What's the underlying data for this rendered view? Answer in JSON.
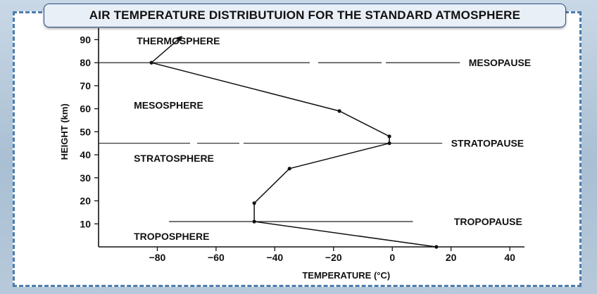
{
  "title": "AIR TEMPERATURE DISTRIBUTUION FOR THE STANDARD ATMOSPHERE",
  "chart_data": {
    "type": "line",
    "xlabel": "TEMPERATURE (°C)",
    "ylabel": "HEIGHT (km)",
    "xlim": [
      -100,
      45
    ],
    "ylim": [
      0,
      95
    ],
    "xticks": [
      -80,
      -60,
      -40,
      -20,
      0,
      20,
      40
    ],
    "yticks": [
      10,
      20,
      30,
      40,
      50,
      60,
      70,
      80,
      90
    ],
    "xtick_labels": [
      "−80",
      "−60",
      "−40",
      "−20",
      "0",
      "20",
      "40"
    ],
    "ytick_labels": [
      "10",
      "20",
      "30",
      "40",
      "50",
      "60",
      "70",
      "80",
      "90"
    ],
    "series": [
      {
        "points": [
          {
            "x": 15,
            "y": 0
          },
          {
            "x": -47,
            "y": 11
          },
          {
            "x": -47,
            "y": 19
          },
          {
            "x": -35,
            "y": 34
          },
          {
            "x": -1,
            "y": 45
          },
          {
            "x": -1,
            "y": 48
          },
          {
            "x": -18,
            "y": 59
          },
          {
            "x": -82,
            "y": 80
          },
          {
            "x": -72,
            "y": 91
          }
        ],
        "arrow_at_end": true
      }
    ],
    "boundaries": [
      {
        "name": "TROPOPAUSE",
        "height": 11
      },
      {
        "name": "STRATOPAUSE",
        "height": 45
      },
      {
        "name": "MESOPAUSE",
        "height": 80
      }
    ],
    "layers": [
      {
        "name": "TROPOSPHERE",
        "x": -88,
        "y": 3
      },
      {
        "name": "STRATOSPHERE",
        "x": -88,
        "y": 37
      },
      {
        "name": "MESOSPHERE",
        "x": -88,
        "y": 60
      },
      {
        "name": "THERMOSPHERE",
        "x": -87,
        "y": 88
      }
    ]
  }
}
